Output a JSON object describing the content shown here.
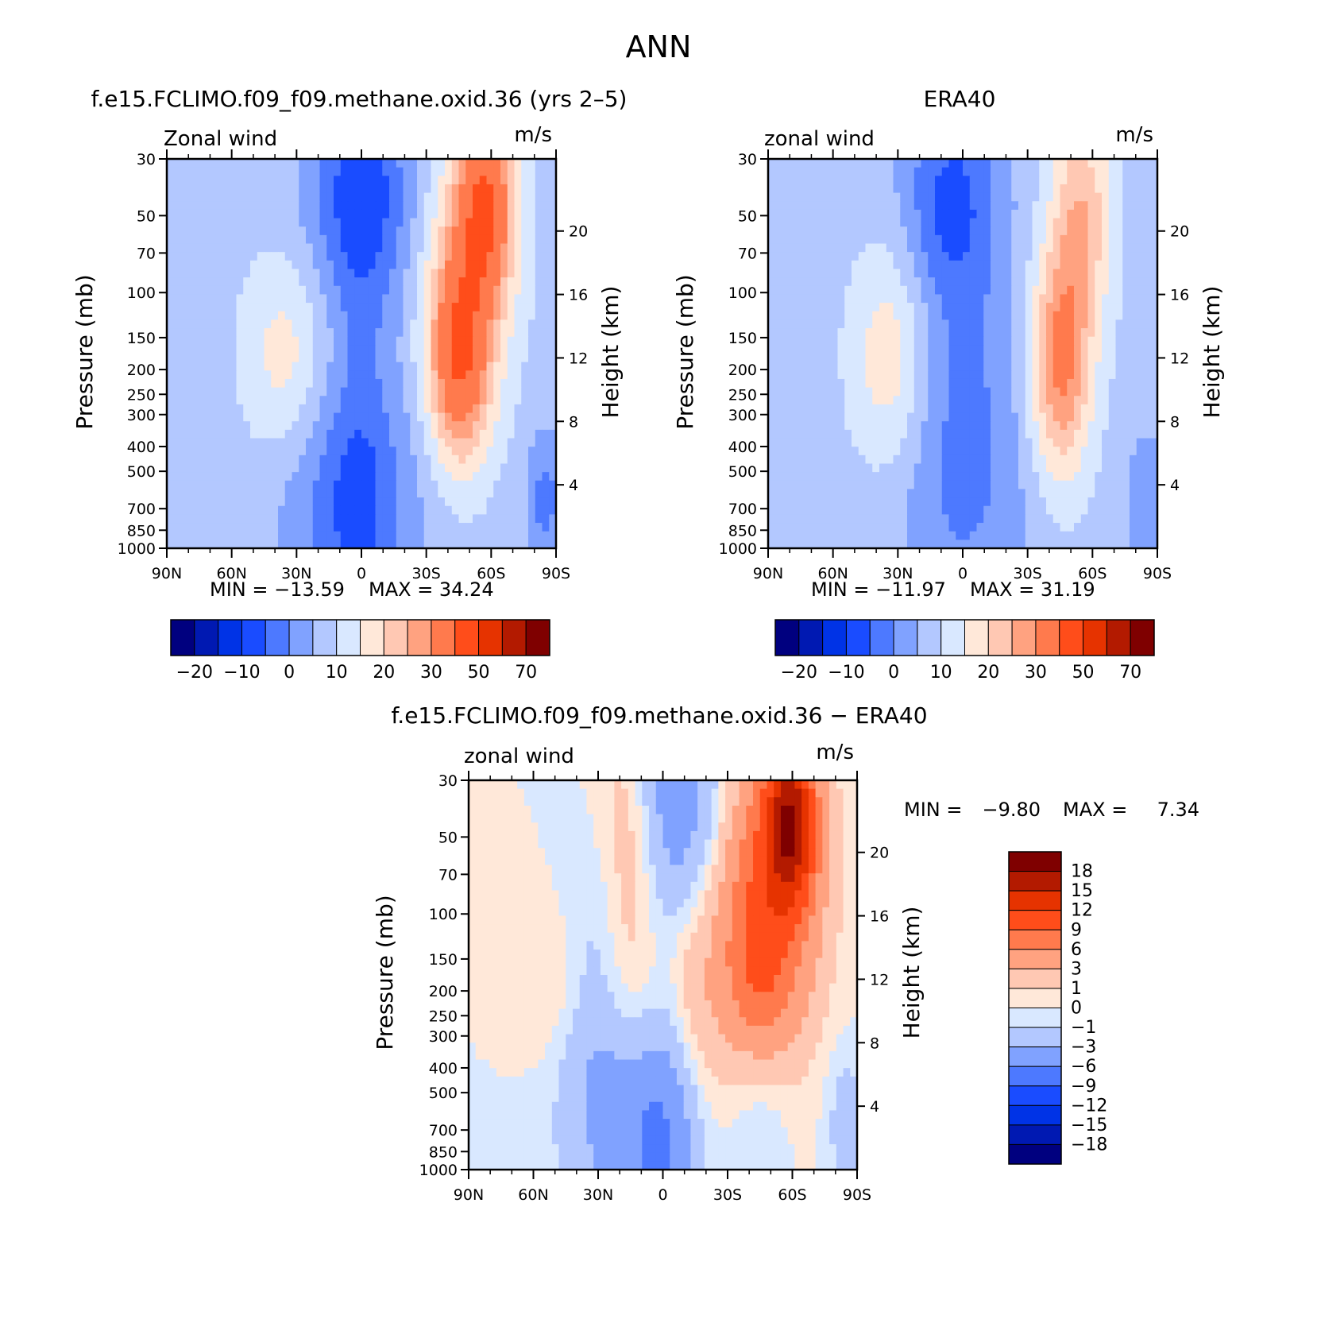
{
  "page": {
    "title": "ANN"
  },
  "chart_data": [
    {
      "type": "contour",
      "title": "f.e15.FCLIMO.f09_f09.methane.oxid.36 (yrs 2–5)",
      "left_label": "Zonal wind",
      "units": "m/s",
      "ylabel": "Pressure (mb)",
      "ylabel_right": "Height (km)",
      "x_ticks": [
        "90N",
        "60N",
        "30N",
        "0",
        "30S",
        "60S",
        "90S"
      ],
      "y_ticks": [
        30,
        50,
        70,
        100,
        150,
        200,
        250,
        300,
        400,
        500,
        700,
        850,
        1000
      ],
      "y_right_ticks": [
        4,
        8,
        12,
        16,
        20
      ],
      "ylim": [
        1000,
        30
      ],
      "min_label": "MIN = −13.59",
      "max_label": "MAX = 34.24",
      "min": -13.59,
      "max": 34.24,
      "colorbar_ticks": [
        "−20",
        "−10",
        "0",
        "10",
        "20",
        "30",
        "50",
        "70"
      ]
    },
    {
      "type": "contour",
      "title": "ERA40",
      "left_label": "zonal wind",
      "units": "m/s",
      "ylabel": "Pressure (mb)",
      "ylabel_right": "Height (km)",
      "x_ticks": [
        "90N",
        "60N",
        "30N",
        "0",
        "30S",
        "60S",
        "90S"
      ],
      "y_ticks": [
        30,
        50,
        70,
        100,
        150,
        200,
        250,
        300,
        400,
        500,
        700,
        850,
        1000
      ],
      "y_right_ticks": [
        4,
        8,
        12,
        16,
        20
      ],
      "ylim": [
        1000,
        30
      ],
      "min_label": "MIN = −11.97",
      "max_label": "MAX = 31.19",
      "min": -11.97,
      "max": 31.19,
      "colorbar_ticks": [
        "−20",
        "−10",
        "0",
        "10",
        "20",
        "30",
        "50",
        "70"
      ]
    },
    {
      "type": "contour",
      "title": "f.e15.FCLIMO.f09_f09.methane.oxid.36 − ERA40",
      "left_label": "zonal wind",
      "units": "m/s",
      "ylabel": "Pressure (mb)",
      "ylabel_right": "Height (km)",
      "x_ticks": [
        "90N",
        "60N",
        "30N",
        "0",
        "30S",
        "60S",
        "90S"
      ],
      "y_ticks": [
        30,
        50,
        70,
        100,
        150,
        200,
        250,
        300,
        400,
        500,
        700,
        850,
        1000
      ],
      "y_right_ticks": [
        4,
        8,
        12,
        16,
        20
      ],
      "ylim": [
        1000,
        30
      ],
      "min_label": "MIN =",
      "min_value": "−9.80",
      "max_label": "MAX =",
      "max_value": "7.34",
      "min": -9.8,
      "max": 7.34,
      "colorbar_ticks": [
        "18",
        "15",
        "12",
        "9",
        "6",
        "3",
        "1",
        "0",
        "−1",
        "−3",
        "−6",
        "−9",
        "−12",
        "−15",
        "−18"
      ]
    }
  ],
  "colors": {
    "palette": [
      "#00007f",
      "#0019b2",
      "#0033e6",
      "#1a4cff",
      "#4d79ff",
      "#80a2ff",
      "#b3c8ff",
      "#d9e8ff",
      "#ffe8d9",
      "#ffc8b3",
      "#ffa280",
      "#ff7a4d",
      "#ff4d1a",
      "#e63300",
      "#b31a00",
      "#7f0000"
    ]
  }
}
